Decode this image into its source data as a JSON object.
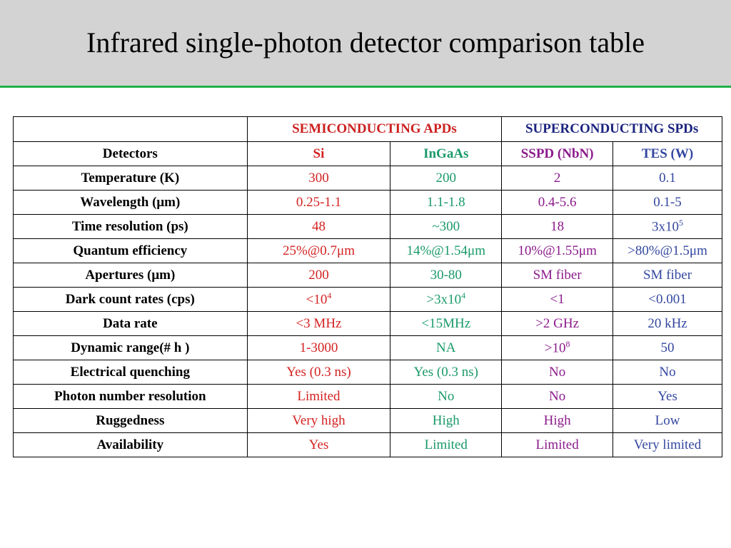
{
  "header": {
    "title": "Infrared single-photon detector comparison table"
  },
  "table": {
    "groups": [
      "SEMICONDUCTING APDs",
      "SUPERCONDUCTING SPDs"
    ],
    "columns": [
      "Detectors",
      "Si",
      "InGaAs",
      "SSPD (NbN)",
      "TES (W)"
    ],
    "rows": [
      [
        "Temperature (K)",
        "300",
        "200",
        "2",
        "0.1"
      ],
      [
        "Wavelength (μm)",
        "0.25-1.1",
        "1.1-1.8",
        "0.4-5.6",
        "0.1-5"
      ],
      [
        "Time resolution (ps)",
        "48",
        "~300",
        "18",
        {
          "text": "3x10",
          "sup": "5"
        }
      ],
      [
        "Quantum efficiency",
        "25%@0.7μm",
        "14%@1.54μm",
        "10%@1.55μm",
        ">80%@1.5μm"
      ],
      [
        "Apertures (μm)",
        "200",
        "30-80",
        "SM fiber",
        "SM fiber"
      ],
      [
        "Dark count rates (cps)",
        {
          "text": "<10",
          "sup": "4"
        },
        {
          "text": ">3x10",
          "sup": "4"
        },
        "<1",
        "<0.001"
      ],
      [
        "Data rate",
        "<3 MHz",
        "<15MHz",
        ">2 GHz",
        "20 kHz"
      ],
      [
        "Dynamic range(# h  )",
        "1-3000",
        "NA",
        {
          "text": ">10",
          "sup": "8"
        },
        "50"
      ],
      [
        "Electrical quenching",
        "Yes (0.3 ns)",
        "Yes (0.3 ns)",
        "No",
        "No"
      ],
      [
        "Photon number resolution",
        "Limited",
        "No",
        "No",
        "Yes"
      ],
      [
        "Ruggedness",
        "Very high",
        "High",
        "High",
        "Low"
      ],
      [
        "Availability",
        "Yes",
        "Limited",
        "Limited",
        "Very limited"
      ]
    ]
  }
}
